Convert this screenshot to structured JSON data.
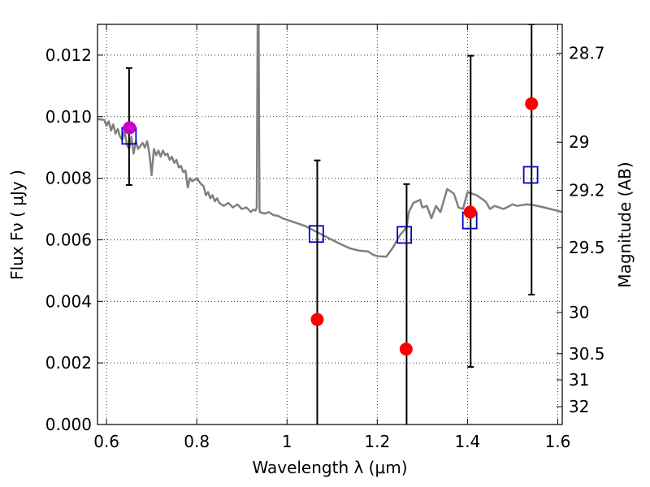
{
  "chart_data": {
    "type": "scatter",
    "xlabel": "Wavelength  λ (μm)",
    "ylabel": "Flux  Fν  ( μJy )",
    "ylabel_right": "Magnitude (AB)",
    "xlim": [
      0.58,
      1.61
    ],
    "ylim": [
      0.0,
      0.013
    ],
    "grid": true,
    "x_ticks": [
      {
        "value": 0.6,
        "label": "0.6"
      },
      {
        "value": 0.8,
        "label": "0.8"
      },
      {
        "value": 1.0,
        "label": "1"
      },
      {
        "value": 1.2,
        "label": "1.2"
      },
      {
        "value": 1.4,
        "label": "1.4"
      },
      {
        "value": 1.6,
        "label": "1.6"
      }
    ],
    "y_ticks": [
      {
        "value": 0.0,
        "label": "0.000"
      },
      {
        "value": 0.002,
        "label": "0.002"
      },
      {
        "value": 0.004,
        "label": "0.004"
      },
      {
        "value": 0.006,
        "label": "0.006"
      },
      {
        "value": 0.008,
        "label": "0.008"
      },
      {
        "value": 0.01,
        "label": "0.010"
      },
      {
        "value": 0.012,
        "label": "0.012"
      }
    ],
    "right_ticks": [
      {
        "flux": 0.01206,
        "label": "28.7"
      },
      {
        "flux": 0.00917,
        "label": "29"
      },
      {
        "flux": 0.00761,
        "label": "29.2"
      },
      {
        "flux": 0.00575,
        "label": "29.5"
      },
      {
        "flux": 0.00364,
        "label": "30"
      },
      {
        "flux": 0.0023,
        "label": "30.5"
      },
      {
        "flux": 0.00145,
        "label": "31"
      },
      {
        "flux": 0.00058,
        "label": "32"
      }
    ],
    "series": [
      {
        "kind": "line",
        "color": "#808080",
        "points": [
          [
            0.58,
            0.00992
          ],
          [
            0.595,
            0.0099
          ],
          [
            0.6,
            0.0097
          ],
          [
            0.605,
            0.00985
          ],
          [
            0.61,
            0.00955
          ],
          [
            0.615,
            0.00975
          ],
          [
            0.62,
            0.00945
          ],
          [
            0.625,
            0.0096
          ],
          [
            0.63,
            0.00935
          ],
          [
            0.635,
            0.00925
          ],
          [
            0.64,
            0.00955
          ],
          [
            0.645,
            0.0091
          ],
          [
            0.65,
            0.00895
          ],
          [
            0.655,
            0.00935
          ],
          [
            0.66,
            0.0088
          ],
          [
            0.665,
            0.0092
          ],
          [
            0.67,
            0.00895
          ],
          [
            0.675,
            0.00905
          ],
          [
            0.68,
            0.00915
          ],
          [
            0.685,
            0.009
          ],
          [
            0.69,
            0.0092
          ],
          [
            0.695,
            0.0088
          ],
          [
            0.7,
            0.0081
          ],
          [
            0.705,
            0.00895
          ],
          [
            0.71,
            0.00875
          ],
          [
            0.715,
            0.0089
          ],
          [
            0.72,
            0.0087
          ],
          [
            0.725,
            0.0089
          ],
          [
            0.73,
            0.00875
          ],
          [
            0.735,
            0.0088
          ],
          [
            0.74,
            0.0086
          ],
          [
            0.745,
            0.0087
          ],
          [
            0.75,
            0.0085
          ],
          [
            0.755,
            0.0086
          ],
          [
            0.76,
            0.00835
          ],
          [
            0.765,
            0.0084
          ],
          [
            0.77,
            0.0082
          ],
          [
            0.775,
            0.00825
          ],
          [
            0.78,
            0.0077
          ],
          [
            0.785,
            0.008
          ],
          [
            0.79,
            0.0079
          ],
          [
            0.8,
            0.008
          ],
          [
            0.81,
            0.0078
          ],
          [
            0.815,
            0.00775
          ],
          [
            0.82,
            0.00745
          ],
          [
            0.825,
            0.00755
          ],
          [
            0.83,
            0.00735
          ],
          [
            0.835,
            0.00745
          ],
          [
            0.84,
            0.00725
          ],
          [
            0.845,
            0.00735
          ],
          [
            0.85,
            0.0072
          ],
          [
            0.86,
            0.0071
          ],
          [
            0.87,
            0.0072
          ],
          [
            0.88,
            0.00705
          ],
          [
            0.89,
            0.00715
          ],
          [
            0.9,
            0.007
          ],
          [
            0.91,
            0.00705
          ],
          [
            0.92,
            0.0069
          ],
          [
            0.925,
            0.00698
          ],
          [
            0.93,
            0.00695
          ],
          [
            0.933,
            0.00705
          ],
          [
            0.935,
            0.013
          ],
          [
            0.937,
            0.013
          ],
          [
            0.939,
            0.007
          ],
          [
            0.94,
            0.0069
          ],
          [
            0.95,
            0.00685
          ],
          [
            0.96,
            0.0069
          ],
          [
            0.97,
            0.0068
          ],
          [
            0.98,
            0.00678
          ],
          [
            0.99,
            0.0067
          ],
          [
            1.0,
            0.00665
          ],
          [
            1.02,
            0.00655
          ],
          [
            1.04,
            0.00645
          ],
          [
            1.06,
            0.0063
          ],
          [
            1.08,
            0.00615
          ],
          [
            1.1,
            0.006
          ],
          [
            1.12,
            0.00585
          ],
          [
            1.14,
            0.00572
          ],
          [
            1.16,
            0.00565
          ],
          [
            1.18,
            0.00562
          ],
          [
            1.19,
            0.00552
          ],
          [
            1.2,
            0.00547
          ],
          [
            1.22,
            0.00545
          ],
          [
            1.235,
            0.00575
          ],
          [
            1.25,
            0.00615
          ],
          [
            1.265,
            0.0064
          ],
          [
            1.27,
            0.0069
          ],
          [
            1.28,
            0.0072
          ],
          [
            1.295,
            0.0073
          ],
          [
            1.3,
            0.00705
          ],
          [
            1.31,
            0.0071
          ],
          [
            1.32,
            0.0067
          ],
          [
            1.33,
            0.0071
          ],
          [
            1.34,
            0.0069
          ],
          [
            1.355,
            0.00765
          ],
          [
            1.37,
            0.0075
          ],
          [
            1.38,
            0.00705
          ],
          [
            1.39,
            0.007
          ],
          [
            1.4,
            0.00755
          ],
          [
            1.41,
            0.0075
          ],
          [
            1.42,
            0.00745
          ],
          [
            1.44,
            0.00725
          ],
          [
            1.45,
            0.007
          ],
          [
            1.46,
            0.0071
          ],
          [
            1.48,
            0.007
          ],
          [
            1.5,
            0.00715
          ],
          [
            1.51,
            0.0071
          ],
          [
            1.53,
            0.00715
          ],
          [
            1.55,
            0.00712
          ],
          [
            1.57,
            0.00705
          ],
          [
            1.59,
            0.00698
          ],
          [
            1.61,
            0.0069
          ]
        ]
      },
      {
        "kind": "squares",
        "color": "#0000cc",
        "points": [
          [
            0.65,
            0.00938
          ],
          [
            1.065,
            0.00619
          ],
          [
            1.26,
            0.00616
          ],
          [
            1.405,
            0.00663
          ],
          [
            1.54,
            0.00811
          ]
        ]
      },
      {
        "kind": "errorbars",
        "color": "#000000",
        "points": [
          {
            "x": 0.65,
            "low": 0.00778,
            "high": 0.01158
          },
          {
            "x": 1.067,
            "low": 0.0,
            "high": 0.00858
          },
          {
            "x": 1.265,
            "low": 0.0,
            "high": 0.00781
          },
          {
            "x": 1.407,
            "low": 0.00187,
            "high": 0.01198
          },
          {
            "x": 1.542,
            "low": 0.00422,
            "high": 0.013
          }
        ]
      },
      {
        "kind": "circles",
        "color": "#ff0000",
        "points": [
          [
            1.067,
            0.00341
          ],
          [
            1.264,
            0.00245
          ],
          [
            1.406,
            0.0069
          ],
          [
            1.542,
            0.01042
          ]
        ]
      },
      {
        "kind": "circles",
        "color": "#cc00cc",
        "points": [
          [
            0.651,
            0.00964
          ]
        ]
      }
    ]
  }
}
